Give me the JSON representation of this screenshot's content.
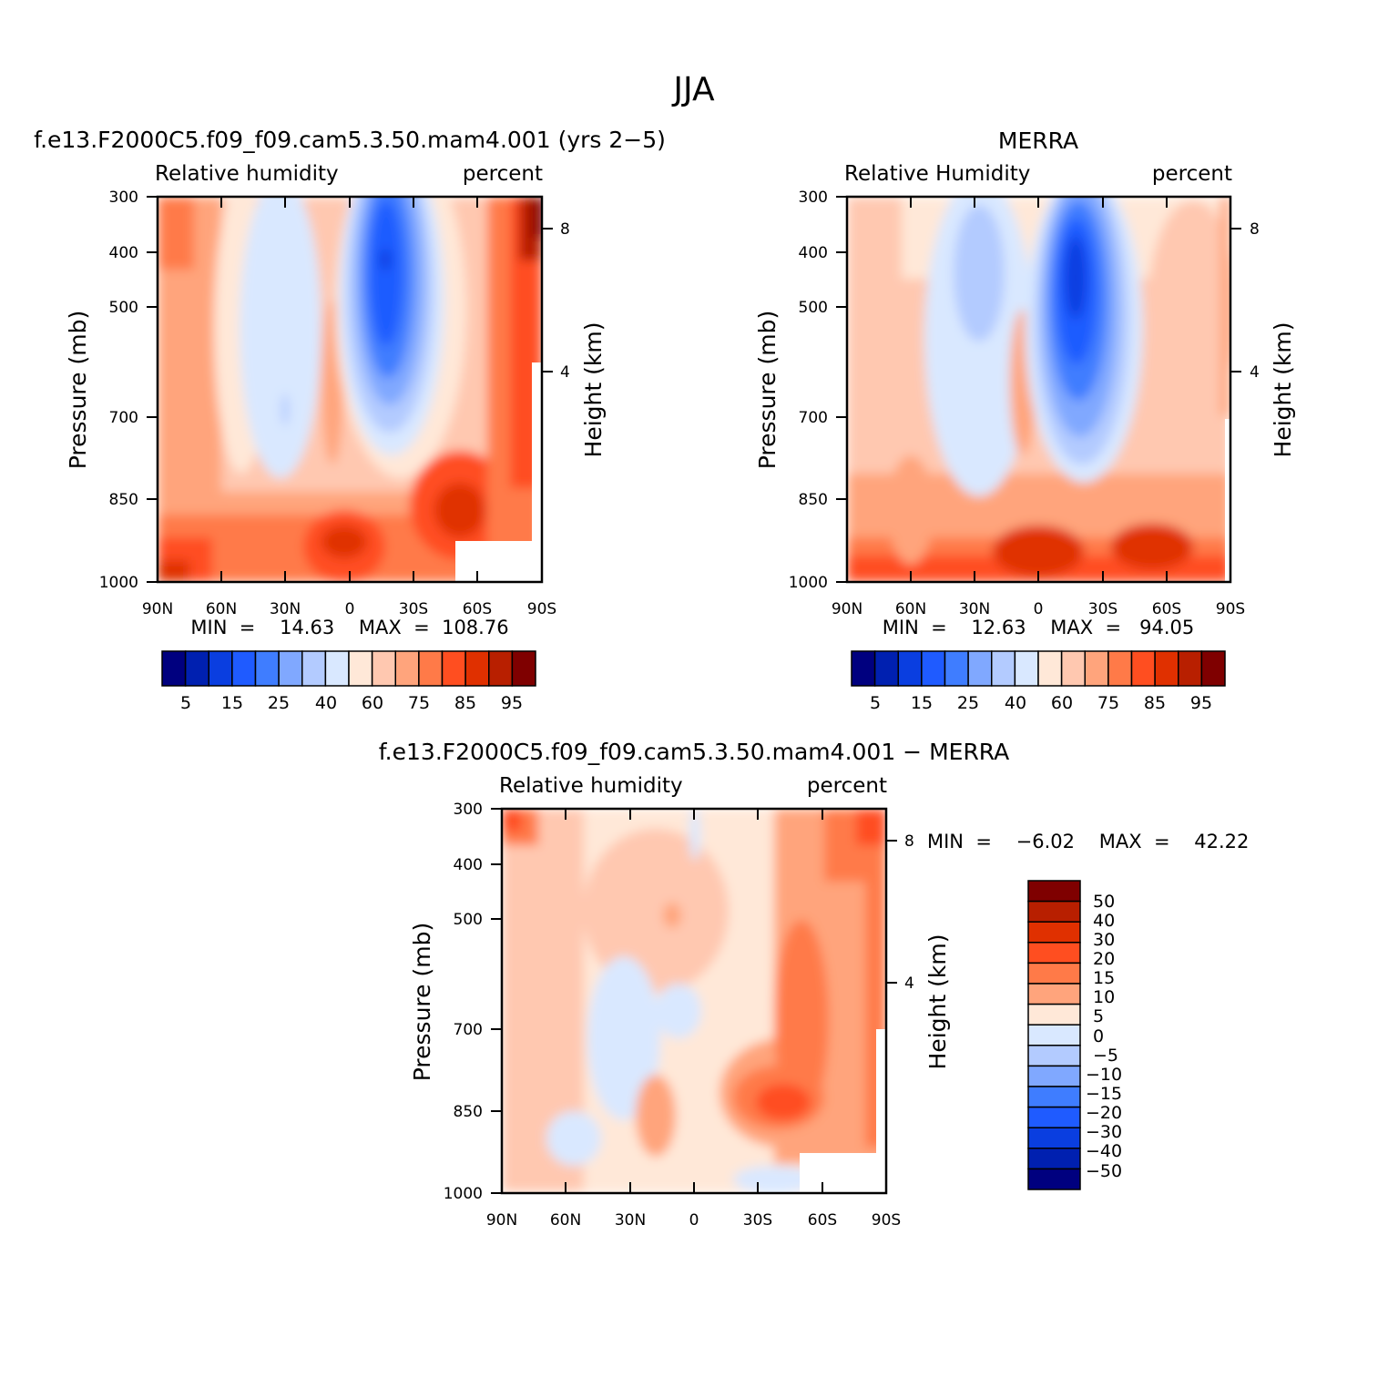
{
  "figure_title": "JJA",
  "panels": [
    {
      "id": "model",
      "title": "f.e13.F2000C5.f09_f09.cam5.3.50.mam4.001  (yrs  2−5)",
      "left_string": "Relative  humidity",
      "right_string": "percent",
      "ylabel": "Pressure  (mb)",
      "ylabel_right": "Height  (km)",
      "stats": "MIN  =    14.63    MAX  =  108.76"
    },
    {
      "id": "obs",
      "title": "MERRA",
      "left_string": "Relative  Humidity",
      "right_string": "percent",
      "ylabel": "Pressure  (mb)",
      "ylabel_right": "Height  (km)",
      "stats": "MIN  =    12.63    MAX  =   94.05"
    },
    {
      "id": "diff",
      "title": "f.e13.F2000C5.f09_f09.cam5.3.50.mam4.001  −  MERRA",
      "left_string": "Relative  humidity",
      "right_string": "percent",
      "ylabel": "Pressure  (mb)",
      "ylabel_right": "Height  (km)",
      "stats": "MIN  =    −6.02    MAX  =    42.22"
    }
  ],
  "axes": {
    "x_ticks": [
      "90N",
      "60N",
      "30N",
      "0",
      "30S",
      "60S",
      "90S"
    ],
    "y_ticks": [
      "300",
      "400",
      "500",
      "700",
      "850",
      "1000"
    ],
    "height_ticks": [
      "8",
      "4"
    ]
  },
  "colorbar_rh": {
    "colors": [
      "#00007f",
      "#0020b0",
      "#0a3ee0",
      "#1f5bff",
      "#3f7dff",
      "#80a8ff",
      "#b3cbff",
      "#d9e8ff",
      "#ffe8d8",
      "#ffc8b0",
      "#ffa47c",
      "#ff7a48",
      "#ff4e20",
      "#e03000",
      "#b81f00",
      "#7f0000"
    ],
    "labels": [
      "5",
      "15",
      "25",
      "40",
      "60",
      "75",
      "85",
      "95"
    ]
  },
  "colorbar_diff": {
    "colors": [
      "#7f0000",
      "#b81f00",
      "#e03000",
      "#ff4e20",
      "#ff7a48",
      "#ffa47c",
      "#ffe8d8",
      "#d9e8ff",
      "#b3cbff",
      "#80a8ff",
      "#3f7dff",
      "#1f5bff",
      "#0a3ee0",
      "#0020b0",
      "#00007f"
    ],
    "labels": [
      "50",
      "40",
      "30",
      "20",
      "15",
      "10",
      "5",
      "0",
      "−5",
      "−10",
      "−15",
      "−20",
      "−30",
      "−40",
      "−50"
    ]
  },
  "chart_data": [
    {
      "type": "heatmap",
      "title": "f.e13.F2000C5.f09_f09.cam5.3.50.mam4.001  (yrs  2−5)",
      "variable": "Relative  humidity",
      "units": "percent",
      "xlabel": "",
      "ylabel": "Pressure  (mb)",
      "y_right_label": "Height  (km)",
      "x": [
        "90N",
        "60N",
        "30N",
        "0",
        "30S",
        "60S",
        "90S"
      ],
      "y": [
        300,
        400,
        500,
        700,
        850,
        1000
      ],
      "y_scale": "log",
      "y_reversed": true,
      "min": 14.63,
      "max": 108.76,
      "levels": [
        5,
        10,
        15,
        20,
        25,
        30,
        40,
        50,
        60,
        70,
        75,
        80,
        85,
        90,
        95
      ],
      "values_approx": [
        [
          80,
          70,
          55,
          45,
          45,
          60,
          30,
          15,
          50,
          60,
          85,
          108
        ],
        [
          75,
          65,
          55,
          45,
          45,
          60,
          30,
          15,
          50,
          55,
          80,
          100
        ],
        [
          70,
          60,
          55,
          45,
          45,
          70,
          30,
          20,
          50,
          60,
          75,
          95
        ],
        [
          75,
          65,
          60,
          50,
          50,
          75,
          45,
          35,
          60,
          70,
          80,
          90
        ],
        [
          85,
          75,
          70,
          60,
          65,
          85,
          70,
          65,
          80,
          85,
          90,
          90
        ],
        [
          95,
          85,
          80,
          75,
          80,
          90,
          85,
          80,
          85,
          90,
          90,
          90
        ]
      ]
    },
    {
      "type": "heatmap",
      "title": "MERRA",
      "variable": "Relative  Humidity",
      "units": "percent",
      "xlabel": "",
      "ylabel": "Pressure  (mb)",
      "y_right_label": "Height  (km)",
      "x": [
        "90N",
        "60N",
        "30N",
        "0",
        "30S",
        "60S",
        "90S"
      ],
      "y": [
        300,
        400,
        500,
        700,
        850,
        1000
      ],
      "y_scale": "log",
      "y_reversed": true,
      "min": 12.63,
      "max": 94.05,
      "levels": [
        5,
        10,
        15,
        20,
        25,
        30,
        40,
        50,
        60,
        70,
        75,
        80,
        85,
        90,
        95
      ],
      "values_approx": [
        [
          70,
          60,
          50,
          40,
          35,
          55,
          25,
          15,
          45,
          55,
          60,
          70
        ],
        [
          65,
          55,
          50,
          35,
          35,
          60,
          25,
          15,
          45,
          55,
          60,
          65
        ],
        [
          60,
          55,
          50,
          40,
          40,
          65,
          30,
          20,
          45,
          55,
          60,
          70
        ],
        [
          65,
          60,
          55,
          45,
          50,
          70,
          45,
          35,
          55,
          60,
          65,
          70
        ],
        [
          75,
          70,
          65,
          55,
          60,
          75,
          65,
          60,
          70,
          75,
          75,
          70
        ],
        [
          90,
          85,
          80,
          75,
          80,
          85,
          85,
          80,
          85,
          85,
          85,
          80
        ]
      ]
    },
    {
      "type": "heatmap",
      "title": "f.e13.F2000C5.f09_f09.cam5.3.50.mam4.001  −  MERRA",
      "variable": "Relative  humidity",
      "units": "percent",
      "xlabel": "",
      "ylabel": "Pressure  (mb)",
      "y_right_label": "Height  (km)",
      "x": [
        "90N",
        "60N",
        "30N",
        "0",
        "30S",
        "60S",
        "90S"
      ],
      "y": [
        300,
        400,
        500,
        700,
        850,
        1000
      ],
      "y_scale": "log",
      "y_reversed": true,
      "min": -6.02,
      "max": 42.22,
      "levels": [
        -50,
        -40,
        -30,
        -20,
        -15,
        -10,
        -5,
        0,
        5,
        10,
        15,
        20,
        30,
        40,
        50
      ],
      "values_approx": [
        [
          20,
          10,
          5,
          5,
          0,
          5,
          5,
          0,
          10,
          15,
          20,
          40
        ],
        [
          10,
          10,
          10,
          5,
          10,
          5,
          5,
          5,
          10,
          15,
          15,
          30
        ],
        [
          10,
          5,
          5,
          5,
          10,
          5,
          5,
          5,
          10,
          15,
          10,
          20
        ],
        [
          10,
          5,
          -5,
          -5,
          0,
          5,
          5,
          5,
          15,
          20,
          10,
          15
        ],
        [
          10,
          5,
          -5,
          0,
          10,
          10,
          5,
          20,
          25,
          15,
          10,
          10
        ],
        [
          5,
          5,
          0,
          0,
          5,
          5,
          0,
          -5,
          -5,
          5,
          15,
          10
        ]
      ]
    }
  ]
}
